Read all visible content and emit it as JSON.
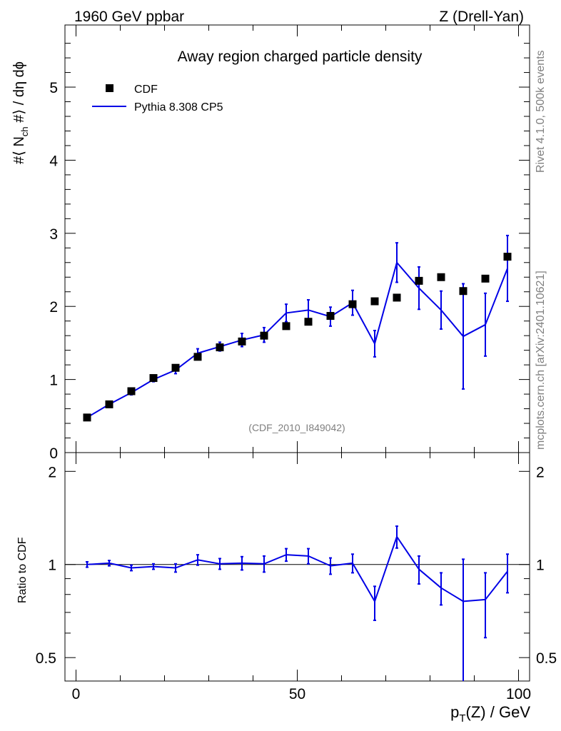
{
  "header": {
    "energy_label": "1960 GeV ppbar",
    "process_label": "Z (Drell-Yan)"
  },
  "side_text": {
    "rivet": "Rivet 4.1.0,  500k events",
    "mcplots": "mcplots.cern.ch [arXiv:2401.10621]"
  },
  "colors": {
    "data": "#000000",
    "mc": "#0000e6",
    "grey": "#7f7f7f"
  },
  "chart_data": [
    {
      "type": "scatter+line",
      "title": "Away region charged particle density",
      "ylabel": "#⟨ N_ch #⟩ / dη dϕ",
      "ylabel_main": "#⟨ N",
      "ylabel_sub": "ch",
      "ylabel_rest": " #⟩ / dη dϕ",
      "xlabel": "p_T(Z) / GeV",
      "xlim": [
        -2.5,
        102.5
      ],
      "ylim": [
        0,
        5.85
      ],
      "yticks": [
        0,
        1,
        2,
        3,
        4,
        5
      ],
      "ytick_labels": [
        "0",
        "1",
        "2",
        "3",
        "4",
        "5"
      ],
      "legend": [
        "CDF",
        "Pythia 8.308 CP5"
      ],
      "watermark": "(CDF_2010_I849042)",
      "series": [
        {
          "name": "CDF",
          "x": [
            2.5,
            7.5,
            12.5,
            17.5,
            22.5,
            27.5,
            32.5,
            37.5,
            42.5,
            47.5,
            52.5,
            57.5,
            62.5,
            67.5,
            72.5,
            77.5,
            82.5,
            87.5,
            92.5,
            97.5
          ],
          "y": [
            0.48,
            0.66,
            0.84,
            1.02,
            1.16,
            1.31,
            1.44,
            1.52,
            1.6,
            1.73,
            1.79,
            1.87,
            2.03,
            2.07,
            2.12,
            2.35,
            2.4,
            2.21,
            2.38,
            2.68
          ]
        },
        {
          "name": "Pythia 8.308 CP5",
          "x": [
            2.5,
            7.5,
            12.5,
            17.5,
            22.5,
            27.5,
            32.5,
            37.5,
            42.5,
            47.5,
            52.5,
            57.5,
            62.5,
            67.5,
            72.5,
            77.5,
            82.5,
            87.5,
            92.5,
            97.5
          ],
          "y": [
            0.48,
            0.66,
            0.82,
            1.0,
            1.13,
            1.36,
            1.45,
            1.54,
            1.61,
            1.91,
            1.95,
            1.86,
            2.05,
            1.49,
            2.6,
            2.25,
            1.95,
            1.59,
            1.75,
            2.52
          ],
          "err": [
            0.02,
            0.02,
            0.03,
            0.03,
            0.05,
            0.06,
            0.06,
            0.09,
            0.1,
            0.12,
            0.14,
            0.13,
            0.17,
            0.18,
            0.27,
            0.29,
            0.26,
            0.72,
            0.43,
            0.45
          ]
        }
      ]
    },
    {
      "type": "line",
      "ylabel": "Ratio to CDF",
      "xlabel": "p_T(Z) / GeV",
      "yscale": "log",
      "ylim": [
        0.42,
        2.3
      ],
      "yticks": [
        0.5,
        1,
        2
      ],
      "ytick_labels": [
        "0.5",
        "1",
        "2"
      ],
      "xticks": [
        0,
        50,
        100
      ],
      "xtick_labels": [
        "0",
        "50",
        "100"
      ],
      "reference": 1,
      "series": [
        {
          "name": "Pythia 8.308 CP5 / CDF",
          "x": [
            2.5,
            7.5,
            12.5,
            17.5,
            22.5,
            27.5,
            32.5,
            37.5,
            42.5,
            47.5,
            52.5,
            57.5,
            62.5,
            67.5,
            72.5,
            77.5,
            82.5,
            87.5,
            92.5,
            97.5
          ],
          "y": [
            1.0,
            1.01,
            0.975,
            0.985,
            0.975,
            1.035,
            1.005,
            1.01,
            1.005,
            1.075,
            1.065,
            0.99,
            1.01,
            0.76,
            1.23,
            0.965,
            0.84,
            0.76,
            0.77,
            0.95
          ],
          "err_lo": [
            0.02,
            0.02,
            0.02,
            0.02,
            0.03,
            0.04,
            0.04,
            0.05,
            0.06,
            0.05,
            0.06,
            0.06,
            0.07,
            0.1,
            0.1,
            0.1,
            0.1,
            0.35,
            0.19,
            0.14
          ],
          "err_hi": [
            0.02,
            0.02,
            0.02,
            0.02,
            0.03,
            0.04,
            0.04,
            0.05,
            0.06,
            0.05,
            0.06,
            0.06,
            0.07,
            0.09,
            0.1,
            0.1,
            0.1,
            0.28,
            0.17,
            0.13
          ]
        }
      ]
    }
  ]
}
